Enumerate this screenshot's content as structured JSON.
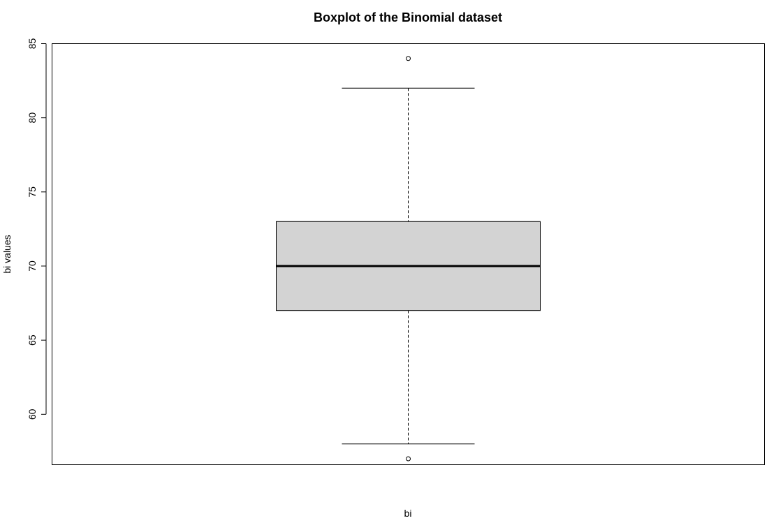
{
  "chart_data": {
    "type": "boxplot",
    "title": "Boxplot of the Binomial dataset",
    "xlabel": "bi",
    "ylabel": "bi values",
    "ylim": [
      56.6,
      85
    ],
    "yticks": [
      60,
      65,
      70,
      75,
      80,
      85
    ],
    "grid": false,
    "legend": "none",
    "box": {
      "q1": 67,
      "median": 70,
      "q3": 73,
      "whisker_low": 58,
      "whisker_high": 82,
      "outliers": [
        57,
        84
      ]
    },
    "colors": {
      "box_fill": "#d3d3d3",
      "stroke": "#000000"
    }
  }
}
